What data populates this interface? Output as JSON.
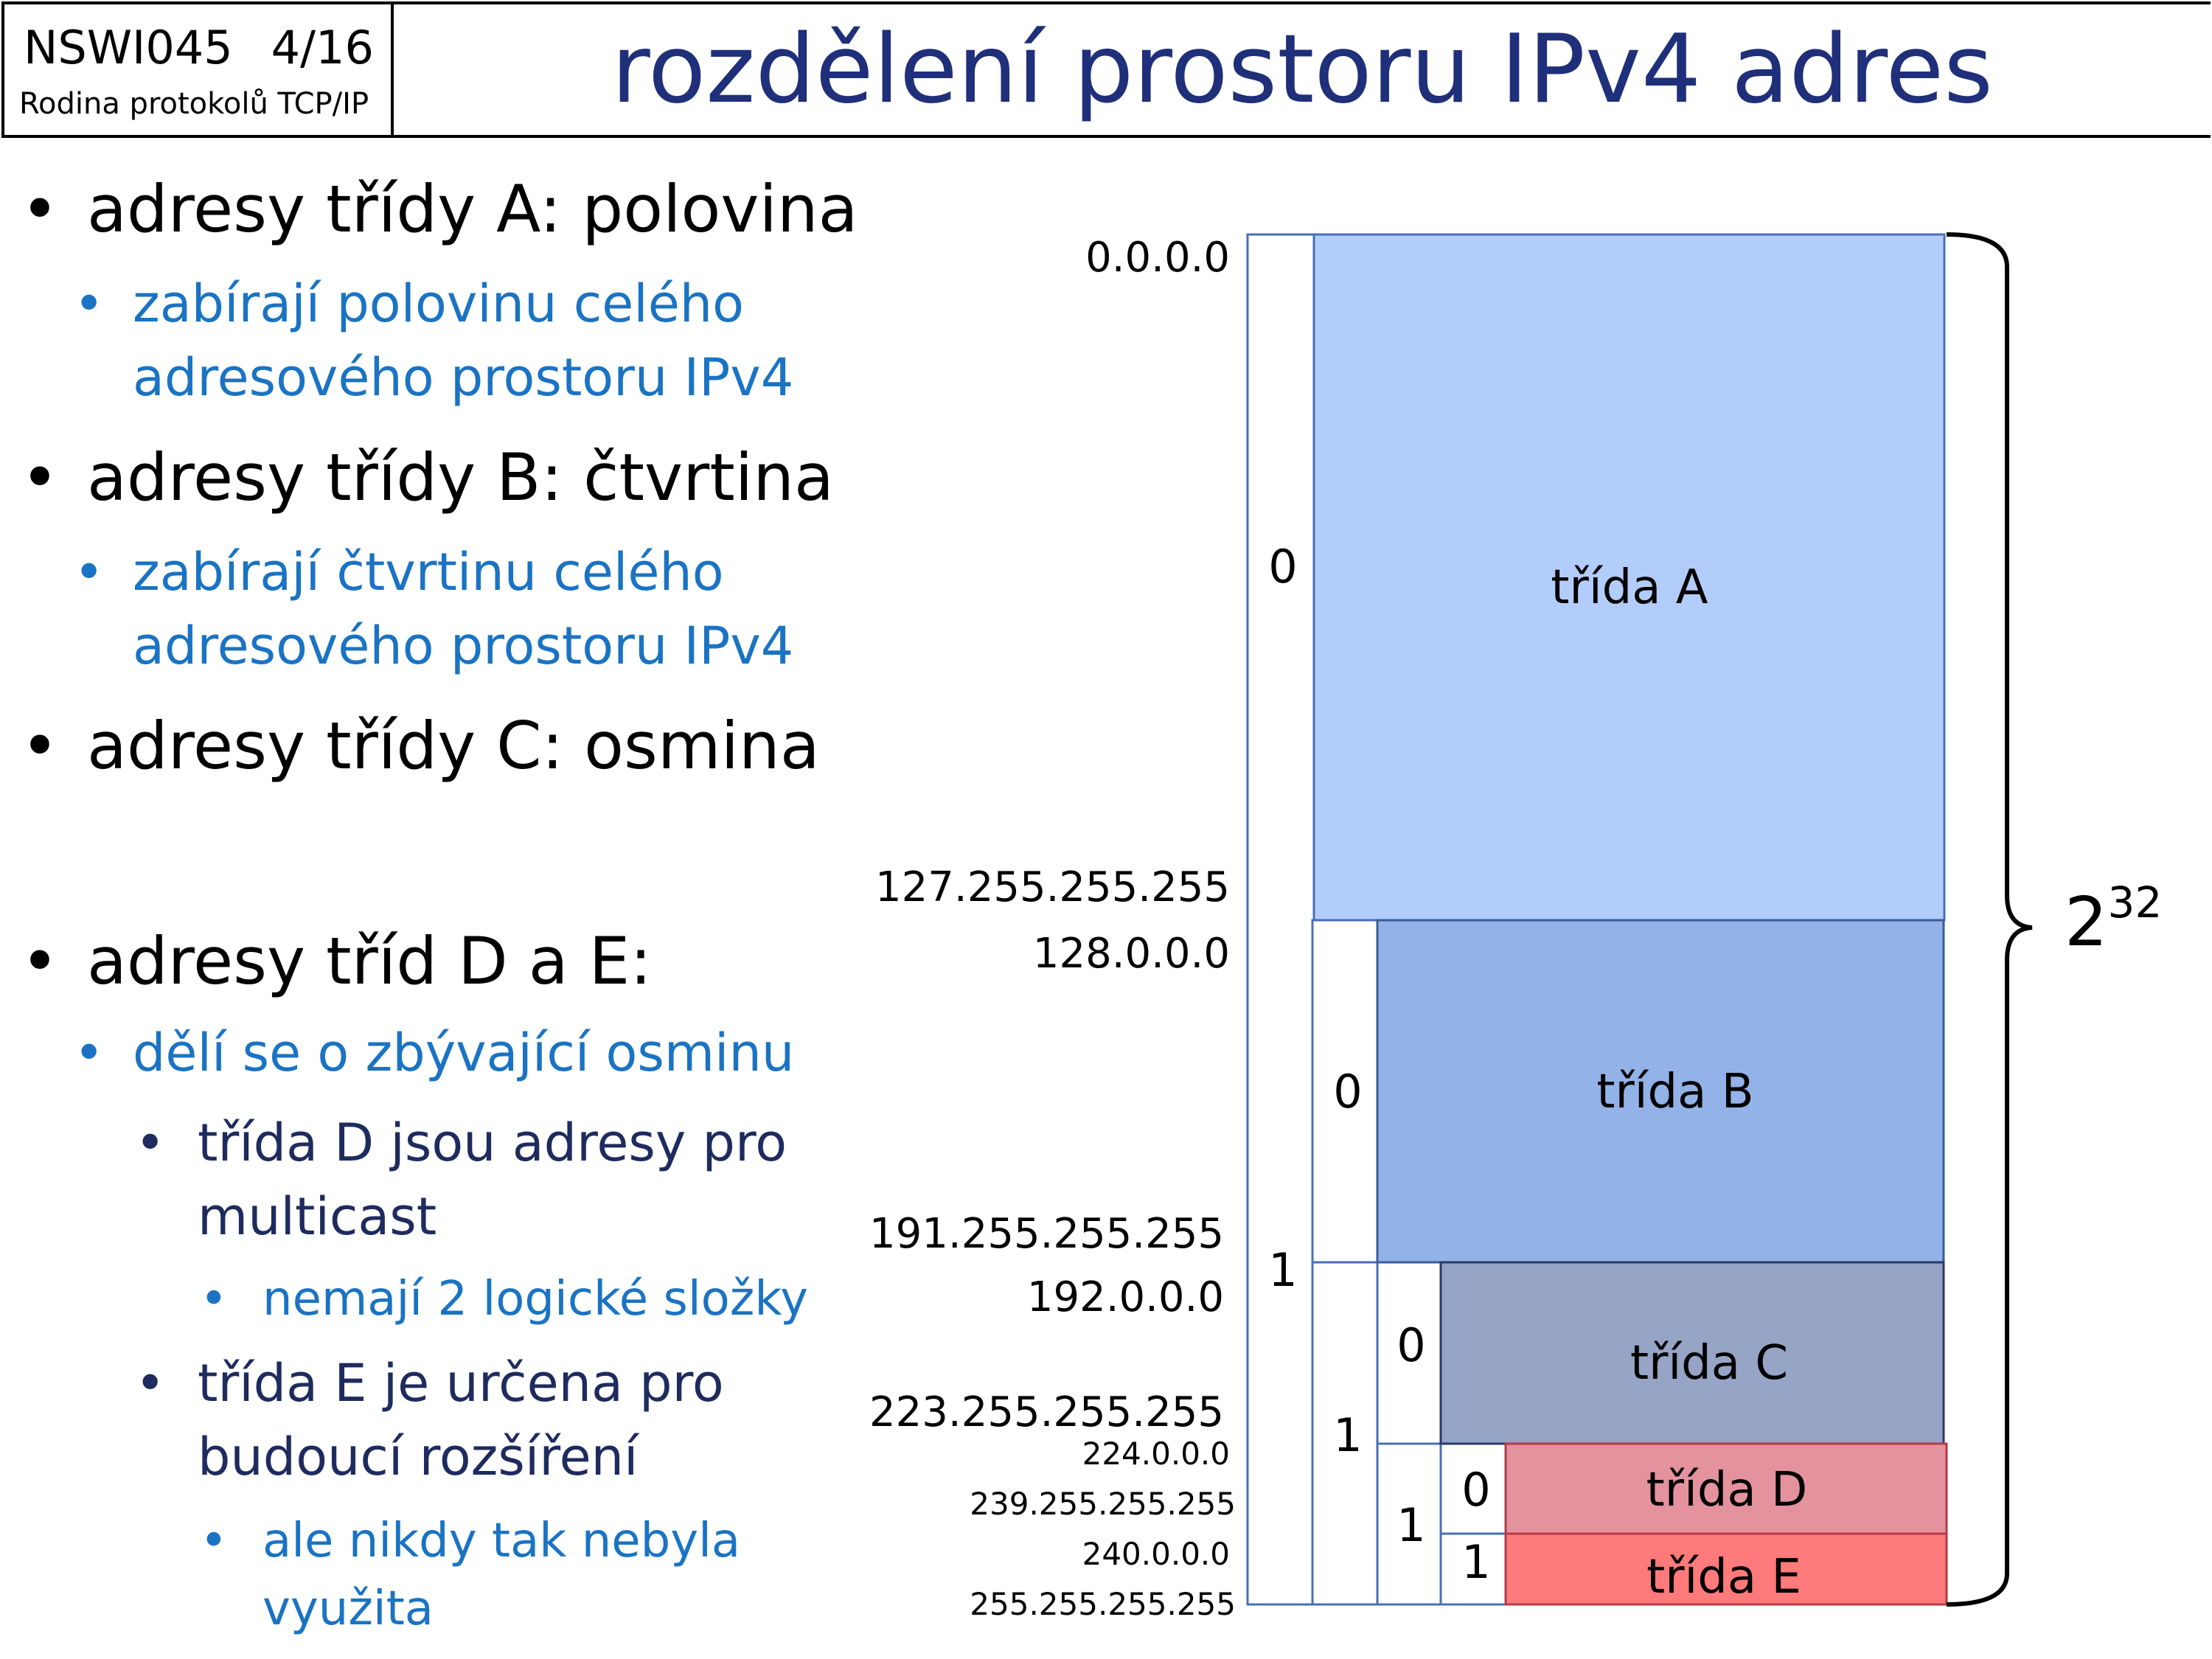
{
  "header": {
    "course_code": "NSWI045",
    "page": "4/16",
    "course_name": "Rodina protokolů TCP/IP",
    "title": "rozdělení prostoru IPv4 adres"
  },
  "bullets": {
    "a": "adresy třídy A: polovina",
    "a_sub": [
      "zabírají polovinu celého",
      "adresového prostoru IPv4"
    ],
    "b": "adresy třídy B: čtvrtina",
    "b_sub": [
      "zabírají čtvrtinu celého",
      "adresového prostoru IPv4"
    ],
    "c": "adresy třídy C: osmina",
    "de": "adresy tříd D a E:",
    "de_sub": "dělí se o zbývající osminu",
    "d_desc": [
      "třída D jsou adresy pro",
      "multicast"
    ],
    "d_note": "nemají 2 logické složky",
    "e_desc": [
      "třída E je určena pro",
      "budoucí rozšíření"
    ],
    "e_note": [
      "ale nikdy tak nebyla",
      "využita"
    ]
  },
  "diagram": {
    "total_base": "2",
    "total_exp": "32",
    "classes": [
      {
        "label": "třída A",
        "color": "#b3cdfb",
        "bit": "0",
        "start": "0.0.0.0",
        "end": "127.255.255.255"
      },
      {
        "label": "třída B",
        "color": "#93b2e7",
        "bit": "0",
        "start": "128.0.0.0",
        "end": "191.255.255.255"
      },
      {
        "label": "třída C",
        "color": "#96a4c5",
        "bit": "0",
        "start": "192.0.0.0",
        "end": "223.255.255.255"
      },
      {
        "label": "třída D",
        "color": "#e4939e",
        "bit": "0",
        "start": "224.0.0.0",
        "end": "239.255.255.255"
      },
      {
        "label": "třída E",
        "color": "#ff7a7a",
        "bit": "1",
        "start": "240.0.0.0",
        "end": "255.255.255.255"
      }
    ],
    "bits_one": [
      "1",
      "1",
      "1"
    ]
  }
}
